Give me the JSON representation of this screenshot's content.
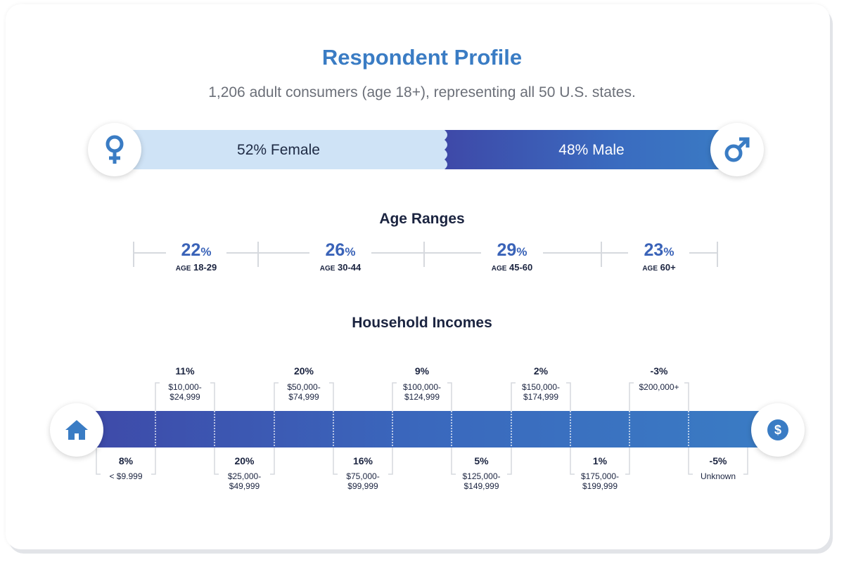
{
  "title": "Respondent Profile",
  "subtitle": "1,206 adult consumers (age 18+), representing all 50 U.S. states.",
  "gender": {
    "female_label": "52% Female",
    "male_label": "48% Male",
    "female_value": 52,
    "male_value": 48,
    "female_icon": "female-symbol-icon",
    "male_icon": "male-symbol-icon"
  },
  "age": {
    "title": "Age Ranges",
    "prefix": "AGE",
    "items": [
      {
        "value": "22",
        "unit": "%",
        "range": "18-29"
      },
      {
        "value": "26",
        "unit": "%",
        "range": "30-44"
      },
      {
        "value": "29",
        "unit": "%",
        "range": "45-60"
      },
      {
        "value": "23",
        "unit": "%",
        "range": "60+"
      }
    ]
  },
  "income": {
    "title": "Household Incomes",
    "left_icon": "house-icon",
    "right_icon": "dollar-icon"
  },
  "chart_data": {
    "type": "bar",
    "title": "Household Incomes",
    "categories": [
      "< $9.999",
      "$10,000-$24,999",
      "$25,000-$49,999",
      "$50,000-$74,999",
      "$75,000-$99,999",
      "$100,000-$124,999",
      "$125,000-$149,999",
      "$150,000-$174,999",
      "$175,000-$199,999",
      "$200,000+",
      "Unknown"
    ],
    "values": [
      8,
      11,
      20,
      20,
      16,
      9,
      5,
      2,
      1,
      -3,
      -5
    ],
    "labels": [
      {
        "pct": "8%",
        "line1": "< $9.999",
        "line2": ""
      },
      {
        "pct": "11%",
        "line1": "$10,000-",
        "line2": "$24,999"
      },
      {
        "pct": "20%",
        "line1": "$25,000-",
        "line2": "$49,999"
      },
      {
        "pct": "20%",
        "line1": "$50,000-",
        "line2": "$74,999"
      },
      {
        "pct": "16%",
        "line1": "$75,000-",
        "line2": "$99,999"
      },
      {
        "pct": "9%",
        "line1": "$100,000-",
        "line2": "$124,999"
      },
      {
        "pct": "5%",
        "line1": "$125,000-",
        "line2": "$149,999"
      },
      {
        "pct": "2%",
        "line1": "$150,000-",
        "line2": "$174,999"
      },
      {
        "pct": "1%",
        "line1": "$175,000-",
        "line2": "$199,999"
      },
      {
        "pct": "-3%",
        "line1": "$200,000+",
        "line2": ""
      },
      {
        "pct": "-5%",
        "line1": "Unknown",
        "line2": ""
      }
    ]
  },
  "colors": {
    "accent": "#3a7cc4",
    "dark_blue": "#3e49a8",
    "light_blue": "#cfe3f6",
    "text_dark": "#1b2440"
  }
}
